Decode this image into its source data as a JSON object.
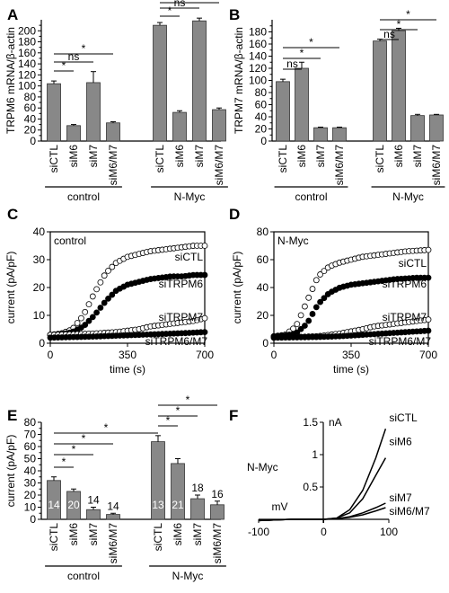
{
  "chart_data": [
    {
      "panel": "A",
      "type": "bar",
      "ylabel": "TRPM6 mRNA/β-actin",
      "ylim": [
        0,
        220
      ],
      "yticks": [
        0,
        20,
        40,
        60,
        80,
        100,
        120,
        140,
        160,
        180,
        200
      ],
      "categories": [
        "siCTL",
        "siM6",
        "siM7",
        "siM6/M7",
        "siCTL",
        "siM6",
        "siM7",
        "siM6/M7"
      ],
      "values": [
        104,
        28,
        106,
        33,
        210,
        52,
        218,
        57
      ],
      "errors": [
        5,
        2,
        20,
        2,
        5,
        3,
        5,
        3
      ],
      "groups": [
        {
          "label": "control",
          "from": 0,
          "to": 3
        },
        {
          "label": "N-Myc",
          "from": 4,
          "to": 7
        }
      ],
      "significance": [
        {
          "a": 0,
          "b": 1,
          "label": "*"
        },
        {
          "a": 0,
          "b": 2,
          "label": "ns"
        },
        {
          "a": 0,
          "b": 3,
          "label": "*"
        },
        {
          "a": 4,
          "b": 5,
          "label": "*"
        },
        {
          "a": 4,
          "b": 6,
          "label": "ns"
        },
        {
          "a": 4,
          "b": 7,
          "label": "*"
        }
      ]
    },
    {
      "panel": "B",
      "type": "bar",
      "ylabel": "TRPM7 mRNA/β-actin",
      "ylim": [
        0,
        200
      ],
      "yticks": [
        0,
        20,
        40,
        60,
        80,
        100,
        120,
        140,
        160,
        180
      ],
      "categories": [
        "siCTL",
        "siM6",
        "siM7",
        "siM6/M7",
        "siCTL",
        "siM6",
        "siM7",
        "siM6/M7"
      ],
      "values": [
        98,
        120,
        22,
        22,
        165,
        182,
        42,
        43
      ],
      "errors": [
        4,
        10,
        1,
        1,
        3,
        4,
        2,
        1
      ],
      "groups": [
        {
          "label": "control",
          "from": 0,
          "to": 3
        },
        {
          "label": "N-Myc",
          "from": 4,
          "to": 7
        }
      ],
      "significance": [
        {
          "a": 0,
          "b": 1,
          "label": "ns"
        },
        {
          "a": 0,
          "b": 2,
          "label": "*"
        },
        {
          "a": 0,
          "b": 3,
          "label": "*"
        },
        {
          "a": 4,
          "b": 5,
          "label": "ns"
        },
        {
          "a": 4,
          "b": 6,
          "label": "*"
        },
        {
          "a": 4,
          "b": 7,
          "label": "*"
        }
      ]
    },
    {
      "panel": "C",
      "type": "scatter",
      "title": "control",
      "xlabel": "time (s)",
      "ylabel": "current (pA/pF)",
      "xlim": [
        0,
        700
      ],
      "xticks": [
        0,
        350,
        700
      ],
      "ylim": [
        0,
        40
      ],
      "yticks": [
        0,
        10,
        20,
        30,
        40
      ],
      "series": [
        {
          "name": "siCTL",
          "fill": "open",
          "points": [
            [
              0,
              3
            ],
            [
              50,
              3.5
            ],
            [
              100,
              5
            ],
            [
              150,
              10
            ],
            [
              200,
              18
            ],
            [
              250,
              25
            ],
            [
              300,
              29
            ],
            [
              350,
              31
            ],
            [
              400,
              32
            ],
            [
              450,
              33
            ],
            [
              500,
              33.5
            ],
            [
              550,
              34
            ],
            [
              600,
              34.5
            ],
            [
              650,
              35
            ],
            [
              700,
              35
            ]
          ]
        },
        {
          "name": "siTRPM6",
          "fill": "filled",
          "points": [
            [
              0,
              3
            ],
            [
              50,
              3.2
            ],
            [
              100,
              4
            ],
            [
              150,
              6
            ],
            [
              200,
              10
            ],
            [
              250,
              15
            ],
            [
              300,
              19
            ],
            [
              350,
              21
            ],
            [
              400,
              22
            ],
            [
              450,
              23
            ],
            [
              500,
              23.5
            ],
            [
              550,
              24
            ],
            [
              600,
              24
            ],
            [
              650,
              24.5
            ],
            [
              700,
              24.5
            ]
          ]
        },
        {
          "name": "siTRPM7",
          "fill": "open",
          "points": [
            [
              0,
              3
            ],
            [
              100,
              3.2
            ],
            [
              200,
              3.5
            ],
            [
              300,
              4
            ],
            [
              400,
              5
            ],
            [
              450,
              6
            ],
            [
              500,
              6.5
            ],
            [
              550,
              7
            ],
            [
              600,
              7.5
            ],
            [
              650,
              8
            ],
            [
              700,
              9
            ]
          ]
        },
        {
          "name": "siTRPM6/M7",
          "fill": "filled",
          "points": [
            [
              0,
              2
            ],
            [
              100,
              2.2
            ],
            [
              200,
              2.4
            ],
            [
              300,
              2.7
            ],
            [
              400,
              3
            ],
            [
              500,
              3.3
            ],
            [
              600,
              3.6
            ],
            [
              700,
              4
            ]
          ]
        }
      ]
    },
    {
      "panel": "D",
      "type": "scatter",
      "title": "N-Myc",
      "xlabel": "time (s)",
      "ylabel": "current (pA/pF)",
      "xlim": [
        0,
        700
      ],
      "xticks": [
        0,
        350,
        700
      ],
      "ylim": [
        0,
        80
      ],
      "yticks": [
        0,
        20,
        40,
        60,
        80
      ],
      "series": [
        {
          "name": "siCTL",
          "fill": "open",
          "points": [
            [
              0,
              5
            ],
            [
              50,
              6
            ],
            [
              100,
              12
            ],
            [
              150,
              30
            ],
            [
              200,
              48
            ],
            [
              250,
              55
            ],
            [
              300,
              58
            ],
            [
              350,
              60
            ],
            [
              400,
              62
            ],
            [
              450,
              63
            ],
            [
              500,
              64
            ],
            [
              550,
              65
            ],
            [
              600,
              66
            ],
            [
              650,
              66.5
            ],
            [
              700,
              67
            ]
          ]
        },
        {
          "name": "siTRPM6",
          "fill": "filled",
          "points": [
            [
              0,
              5
            ],
            [
              50,
              5.5
            ],
            [
              100,
              7
            ],
            [
              150,
              14
            ],
            [
              200,
              28
            ],
            [
              250,
              36
            ],
            [
              300,
              40
            ],
            [
              350,
              42
            ],
            [
              400,
              43
            ],
            [
              450,
              44
            ],
            [
              500,
              45
            ],
            [
              550,
              46
            ],
            [
              600,
              46.5
            ],
            [
              650,
              47
            ],
            [
              700,
              47
            ]
          ]
        },
        {
          "name": "siTRPM7",
          "fill": "open",
          "points": [
            [
              0,
              4
            ],
            [
              100,
              4.5
            ],
            [
              200,
              5
            ],
            [
              300,
              7
            ],
            [
              400,
              10
            ],
            [
              450,
              12
            ],
            [
              500,
              13
            ],
            [
              550,
              14
            ],
            [
              600,
              15
            ],
            [
              650,
              16
            ],
            [
              700,
              17
            ]
          ]
        },
        {
          "name": "siTRPM6/M7",
          "fill": "filled",
          "points": [
            [
              0,
              4
            ],
            [
              100,
              4.2
            ],
            [
              200,
              4.5
            ],
            [
              300,
              5
            ],
            [
              400,
              6
            ],
            [
              500,
              7
            ],
            [
              600,
              8
            ],
            [
              700,
              9
            ]
          ]
        }
      ]
    },
    {
      "panel": "E",
      "type": "bar",
      "ylabel": "current (pA/pF)",
      "ylim": [
        0,
        80
      ],
      "yticks": [
        0,
        10,
        20,
        30,
        40,
        50,
        60,
        70,
        80
      ],
      "categories": [
        "siCTL",
        "siM6",
        "siM7",
        "siM6/M7",
        "siCTL",
        "siM6",
        "siM7",
        "siM6/M7"
      ],
      "values": [
        32,
        23,
        8,
        4,
        64,
        46,
        17,
        12
      ],
      "errors": [
        3,
        2,
        2,
        1,
        5,
        4,
        3,
        3
      ],
      "n": [
        "14",
        "20",
        "14",
        "14",
        "13",
        "21",
        "18",
        "16"
      ],
      "groups": [
        {
          "label": "control",
          "from": 0,
          "to": 3
        },
        {
          "label": "N-Myc",
          "from": 4,
          "to": 7
        }
      ],
      "significance": [
        {
          "a": 0,
          "b": 1,
          "label": "*"
        },
        {
          "a": 0,
          "b": 2,
          "label": "*"
        },
        {
          "a": 0,
          "b": 3,
          "label": "*"
        },
        {
          "a": 0,
          "b": 4,
          "label": "*"
        },
        {
          "a": 4,
          "b": 5,
          "label": "*"
        },
        {
          "a": 4,
          "b": 6,
          "label": "*"
        },
        {
          "a": 4,
          "b": 7,
          "label": "*"
        }
      ]
    },
    {
      "panel": "F",
      "type": "line",
      "title": "N-Myc",
      "xlabel": "mV",
      "ylabel": "nA",
      "xlim": [
        -100,
        100
      ],
      "xticks": [
        -100,
        0,
        100
      ],
      "ylim": [
        0,
        1.5
      ],
      "yticks": [
        0.5,
        1.0,
        1.5
      ],
      "series": [
        {
          "name": "siCTL",
          "points": [
            [
              -100,
              -0.02
            ],
            [
              -50,
              0
            ],
            [
              0,
              0
            ],
            [
              20,
              0.02
            ],
            [
              40,
              0.15
            ],
            [
              60,
              0.45
            ],
            [
              80,
              0.95
            ],
            [
              95,
              1.4
            ]
          ]
        },
        {
          "name": "siM6",
          "points": [
            [
              -100,
              -0.02
            ],
            [
              -50,
              0
            ],
            [
              0,
              0
            ],
            [
              20,
              0.02
            ],
            [
              40,
              0.1
            ],
            [
              60,
              0.32
            ],
            [
              80,
              0.68
            ],
            [
              95,
              0.95
            ]
          ]
        },
        {
          "name": "siM7",
          "points": [
            [
              -100,
              -0.02
            ],
            [
              -50,
              0
            ],
            [
              0,
              0
            ],
            [
              20,
              0.01
            ],
            [
              40,
              0.04
            ],
            [
              60,
              0.1
            ],
            [
              80,
              0.18
            ],
            [
              95,
              0.25
            ]
          ]
        },
        {
          "name": "siM6/M7",
          "points": [
            [
              -100,
              -0.02
            ],
            [
              -50,
              0
            ],
            [
              0,
              0
            ],
            [
              20,
              0.01
            ],
            [
              40,
              0.03
            ],
            [
              60,
              0.07
            ],
            [
              80,
              0.13
            ],
            [
              95,
              0.18
            ]
          ]
        }
      ]
    }
  ]
}
